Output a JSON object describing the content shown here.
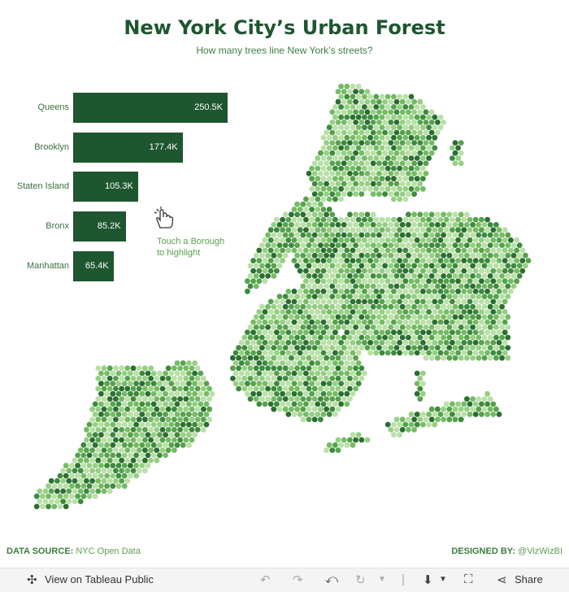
{
  "header": {
    "title": "New York City’s Urban Forest",
    "subtitle": "How many trees line New York’s streets?"
  },
  "chart_data": {
    "type": "bar",
    "orientation": "horizontal",
    "categories": [
      "Queens",
      "Brooklyn",
      "Staten Island",
      "Bronx",
      "Manhattan"
    ],
    "values": [
      250.5,
      177.4,
      105.3,
      85.2,
      65.4
    ],
    "value_labels": [
      "250.5K",
      "177.4K",
      "105.3K",
      "85.2K",
      "65.4K"
    ],
    "unit": "K",
    "bar_color": "#1e5630"
  },
  "hint": {
    "line1": "Touch a Borough",
    "line2": "to highlight",
    "icon": "hand-pointer-icon"
  },
  "map": {
    "description_icon": "hexbin-map-of-new-york",
    "colors": [
      "#b9e0a8",
      "#96cf84",
      "#74bb64",
      "#56a24c",
      "#3d8a3d",
      "#2a6f30"
    ]
  },
  "footer": {
    "source_label": "DATA SOURCE:",
    "source_value": "NYC Open Data",
    "designed_label": "DESIGNED BY:",
    "designed_value": "@VizWizBI"
  },
  "toolbar": {
    "view_label": "View on Tableau Public",
    "share_label": "Share"
  },
  "colors": {
    "title": "#1e5630",
    "accent": "#5aa050"
  }
}
